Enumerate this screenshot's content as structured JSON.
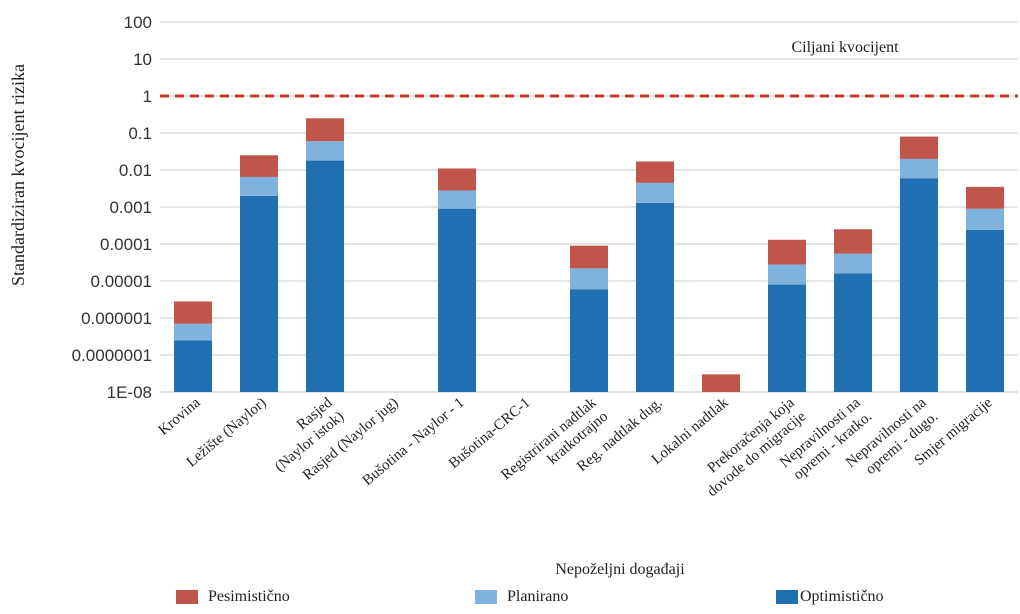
{
  "chart_data": {
    "type": "bar",
    "stacked": true,
    "yscale": "log",
    "ylabel": "Standardiziran kvocijent rizika",
    "xlabel": "Nepoželjni događaji",
    "ylim": [
      1e-08,
      100
    ],
    "yticks": [
      "100",
      "10",
      "1",
      "0.1",
      "0.01",
      "0.001",
      "0.0001",
      "0.00001",
      "0.000001",
      "0.0000001",
      "1E-08"
    ],
    "grid": true,
    "reference_line": {
      "value": 1,
      "label": "Ciljani kvocijent",
      "color": "#C0392B"
    },
    "categories": [
      "Krovina",
      "Ležište (Naylor)",
      "Rasjed (Naylor istok)",
      "Rasjed (Naylor jug)",
      "Bušotina - Naylor - 1",
      "Bušotina-CRC-1",
      "Registrirani nadtlak kratkotrajno",
      "Reg. nadtlak dug.",
      "Lokalni nadtlak",
      "Prekoračenja koja dovode do migracije",
      "Nepravilnosti na opremi - kratko.",
      "Nepravilnosti na opremi - dugo.",
      "Smjer migracije"
    ],
    "category_lines": [
      [
        "Krovina"
      ],
      [
        "Ležište (Naylor)"
      ],
      [
        "Rasjed",
        "(Naylor istok)"
      ],
      [
        "Rasjed (Naylor jug)"
      ],
      [
        "Bušotina - Naylor - 1"
      ],
      [
        "Bušotina-CRC-1"
      ],
      [
        "Registrirani nadtlak",
        "kratkotrajno"
      ],
      [
        "Reg. nadtlak dug."
      ],
      [
        "Lokalni nadtlak"
      ],
      [
        "Prekoračenja koja",
        "dovode do migracije"
      ],
      [
        "Nepravilnosti na",
        "opremi - kratko."
      ],
      [
        "Nepravilnosti na",
        "opremi - dugo."
      ],
      [
        "Smjer migracije"
      ]
    ],
    "series": [
      {
        "name": "Optimistično",
        "color": "#1F6FB2",
        "values": [
          2.5e-07,
          0.002,
          0.018,
          null,
          0.0009,
          null,
          6e-06,
          0.0013,
          null,
          8e-06,
          1.6e-05,
          0.006,
          0.00024
        ]
      },
      {
        "name": "Planirano",
        "color": "#7FB3DE",
        "values": [
          7e-07,
          0.0065,
          0.06,
          null,
          0.0028,
          null,
          2.2e-05,
          0.0045,
          null,
          2.8e-05,
          5.5e-05,
          0.02,
          0.0009
        ]
      },
      {
        "name": "Pesimistično",
        "color": "#C0564B",
        "values": [
          2.8e-06,
          0.025,
          0.25,
          null,
          0.011,
          null,
          9e-05,
          0.017,
          3e-08,
          0.00013,
          0.00025,
          0.08,
          0.0035
        ]
      }
    ]
  },
  "legend": [
    {
      "label": "Pesimistično",
      "color": "#C0564B"
    },
    {
      "label": "Planirano",
      "color": "#7FB3DE"
    },
    {
      "label": "Optimistično",
      "color": "#1F6FB2"
    }
  ]
}
